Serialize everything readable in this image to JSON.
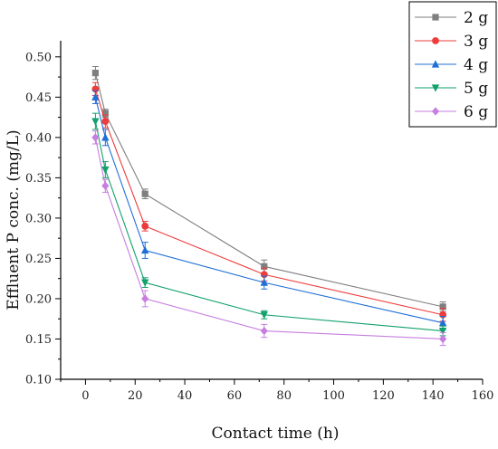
{
  "chart_data": {
    "type": "line",
    "title": "",
    "xlabel": "Contact time (h)",
    "ylabel": "Effluent P conc. (mg/L)",
    "xlim": [
      -10,
      160
    ],
    "ylim": [
      0.1,
      0.52
    ],
    "xticks": [
      0,
      20,
      40,
      60,
      80,
      100,
      120,
      140,
      160
    ],
    "xtick_labels": [
      "0",
      "20",
      "40",
      "60",
      "80",
      "100",
      "120",
      "140",
      "160"
    ],
    "yticks": [
      0.1,
      0.15,
      0.2,
      0.25,
      0.3,
      0.35,
      0.4,
      0.45,
      0.5
    ],
    "ytick_labels": [
      "0.10",
      "0.15",
      "0.20",
      "0.25",
      "0.30",
      "0.35",
      "0.40",
      "0.45",
      "0.50"
    ],
    "grid": false,
    "legend_position": "top-right",
    "x": [
      4,
      8,
      24,
      72,
      144
    ],
    "series": [
      {
        "name": "2 g",
        "color": "#7f7f7f",
        "marker": "square",
        "values": [
          0.48,
          0.43,
          0.33,
          0.24,
          0.19
        ],
        "errors": [
          0.008,
          0.005,
          0.006,
          0.008,
          0.006
        ]
      },
      {
        "name": "3 g",
        "color": "#ee3b3b",
        "marker": "circle",
        "values": [
          0.46,
          0.42,
          0.29,
          0.23,
          0.18
        ],
        "errors": [
          0.008,
          0.008,
          0.006,
          0.008,
          0.008
        ]
      },
      {
        "name": "4 g",
        "color": "#1f6fd6",
        "marker": "triangle-up",
        "values": [
          0.45,
          0.4,
          0.26,
          0.22,
          0.17
        ],
        "errors": [
          0.008,
          0.01,
          0.01,
          0.008,
          0.008
        ]
      },
      {
        "name": "5 g",
        "color": "#12a16b",
        "marker": "triangle-down",
        "values": [
          0.42,
          0.36,
          0.22,
          0.18,
          0.16
        ],
        "errors": [
          0.01,
          0.01,
          0.006,
          0.005,
          0.006
        ]
      },
      {
        "name": "6 g",
        "color": "#c77ee0",
        "marker": "diamond",
        "values": [
          0.4,
          0.34,
          0.2,
          0.16,
          0.15
        ],
        "errors": [
          0.008,
          0.008,
          0.01,
          0.008,
          0.008
        ]
      }
    ]
  }
}
